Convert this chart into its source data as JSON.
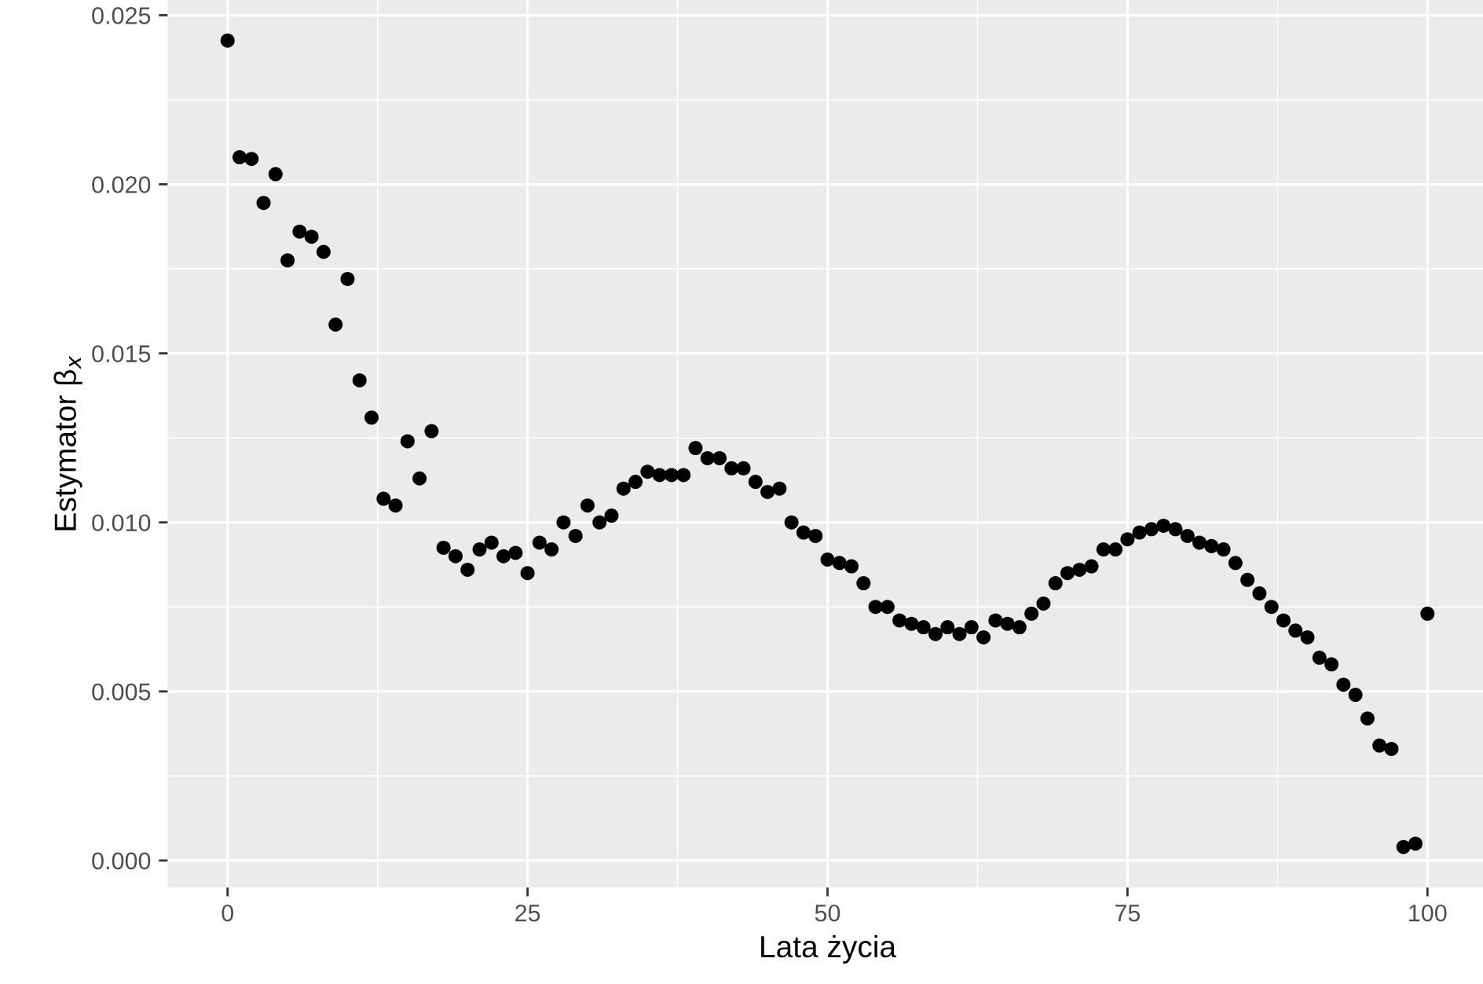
{
  "chart_data": {
    "type": "scatter",
    "xlabel": "Lata życia",
    "ylabel": "Estymator β$_{x}$",
    "x": [
      0,
      1,
      2,
      3,
      4,
      5,
      6,
      7,
      8,
      9,
      10,
      11,
      12,
      13,
      14,
      15,
      16,
      17,
      18,
      19,
      20,
      21,
      22,
      23,
      24,
      25,
      26,
      27,
      28,
      29,
      30,
      31,
      32,
      33,
      34,
      35,
      36,
      37,
      38,
      39,
      40,
      41,
      42,
      43,
      44,
      45,
      46,
      47,
      48,
      49,
      50,
      51,
      52,
      53,
      54,
      55,
      56,
      57,
      58,
      59,
      60,
      61,
      62,
      63,
      64,
      65,
      66,
      67,
      68,
      69,
      70,
      71,
      72,
      73,
      74,
      75,
      76,
      77,
      78,
      79,
      80,
      81,
      82,
      83,
      84,
      85,
      86,
      87,
      88,
      89,
      90,
      91,
      92,
      93,
      94,
      95,
      96,
      97,
      98,
      99,
      100
    ],
    "series": [
      {
        "color": "#000000",
        "values": [
          0.02425,
          0.0208,
          0.02075,
          0.01945,
          0.0203,
          0.01775,
          0.0186,
          0.01845,
          0.018,
          0.01585,
          0.0172,
          0.0142,
          0.0131,
          0.0107,
          0.0105,
          0.0124,
          0.0113,
          0.0127,
          0.00925,
          0.009,
          0.0086,
          0.0092,
          0.0094,
          0.009,
          0.0091,
          0.0085,
          0.0094,
          0.0092,
          0.01,
          0.0096,
          0.0105,
          0.01,
          0.0102,
          0.011,
          0.0112,
          0.0115,
          0.0114,
          0.0114,
          0.0114,
          0.0122,
          0.0119,
          0.0119,
          0.0116,
          0.0116,
          0.0112,
          0.0109,
          0.011,
          0.01,
          0.0097,
          0.0096,
          0.0089,
          0.0088,
          0.0087,
          0.0082,
          0.0075,
          0.0075,
          0.0071,
          0.007,
          0.0069,
          0.0067,
          0.0069,
          0.0067,
          0.0069,
          0.0066,
          0.0071,
          0.007,
          0.0069,
          0.0073,
          0.0076,
          0.0082,
          0.0085,
          0.0086,
          0.0087,
          0.0092,
          0.0092,
          0.0095,
          0.0097,
          0.0098,
          0.0099,
          0.0098,
          0.0096,
          0.0094,
          0.0093,
          0.0092,
          0.0088,
          0.0083,
          0.0079,
          0.0075,
          0.0071,
          0.0068,
          0.0066,
          0.006,
          0.0058,
          0.0052,
          0.0049,
          0.0042,
          0.0034,
          0.0033,
          0.0004,
          0.0005,
          0.0073
        ]
      }
    ],
    "xlim": [
      -5,
      105
    ],
    "ylim": [
      -0.0008,
      0.02545
    ],
    "xticks": [
      0,
      25,
      50,
      75,
      100
    ],
    "yticks": [
      {
        "value": 0,
        "label": "0.000"
      },
      {
        "value": 0.005,
        "label": "0.005"
      },
      {
        "value": 0.01,
        "label": "0.010"
      },
      {
        "value": 0.015,
        "label": "0.015"
      },
      {
        "value": 0.02,
        "label": "0.020"
      },
      {
        "value": 0.025,
        "label": "0.025"
      }
    ],
    "grid": true,
    "marker": "circle",
    "legend": false
  }
}
